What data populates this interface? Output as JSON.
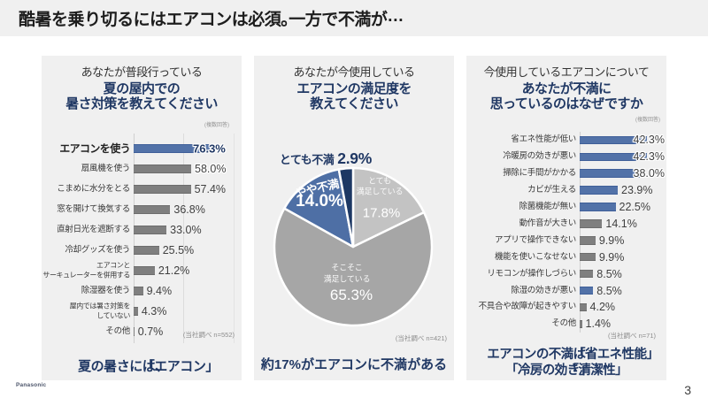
{
  "slide": {
    "title": "酷暑を乗り切るにはエアコンは必須。一方で不満が…",
    "page_number": "3",
    "brand": "Panasonic"
  },
  "colors": {
    "panel_bg": "#f0f0f0",
    "accent_blue": "#5272a8",
    "bar_gray": "#7f7f7f",
    "dark_navy": "#203864",
    "pie_light_gray": "#c3c3c3",
    "pie_gray": "#a6a6a6"
  },
  "panels": [
    {
      "header": "あなたが普段行っている",
      "title_lines": [
        "夏の屋内での",
        "暑さ対策を教えてください"
      ],
      "note": "(複数回答)",
      "source_note": "(当社調べ n=552)",
      "takeaway_lines": [
        "夏の暑さには、「エアコン」"
      ]
    },
    {
      "header": "あなたが今使用している",
      "title_lines": [
        "エアコンの満足度を",
        "教えてください"
      ],
      "note": "",
      "source_note": "(当社調べ n=421)",
      "takeaway_lines": [
        "約17%がエアコンに不満がある"
      ]
    },
    {
      "header": "今使用しているエアコンについて",
      "title_lines": [
        "あなたが不満に",
        "思っているのはなぜですか"
      ],
      "note": "(複数回答)",
      "source_note": "(当社調べ n=71)",
      "takeaway_lines": [
        "エアコンの不満は「省エネ性能」",
        "「冷房の効き」「清潔性」"
      ]
    }
  ],
  "chart_data": [
    {
      "type": "bar",
      "title": "夏の屋内での暑さ対策を教えてください",
      "categories": [
        "エアコンを使う",
        "扇風機を使う",
        "こまめに水分をとる",
        "窓を開けて換気する",
        "直射日光を遮断する",
        "冷却グッズを使う",
        [
          "エアコンと",
          "サーキュレーターを併用する"
        ],
        "除湿器を使う",
        [
          "屋内では暑さ対策を",
          "していない"
        ],
        "その他"
      ],
      "values": [
        76.3,
        58.0,
        57.4,
        36.8,
        33.0,
        25.5,
        21.2,
        9.4,
        4.3,
        0.7
      ],
      "unit": "%",
      "xlim": [
        0,
        100
      ],
      "gridlines_pct": [
        0,
        50,
        100
      ],
      "highlight_indices": [
        0
      ],
      "emphasis_index": 0
    },
    {
      "type": "pie",
      "title": "エアコンの満足度を教えてください",
      "direction": "clockwise",
      "start_angle_deg": 0,
      "slices": [
        {
          "label": "とても満足している",
          "label_lines": [
            "とても",
            "満足している"
          ],
          "value": 17.8,
          "pct_display": "17.8%",
          "color": "#c3c3c3"
        },
        {
          "label": "そこそこ満足している",
          "label_lines": [
            "そこそこ",
            "満足している"
          ],
          "value": 65.3,
          "pct_display": "65.3%",
          "color": "#a6a6a6"
        },
        {
          "label": "やや不満",
          "label_lines": [
            "やや不満"
          ],
          "value": 14.0,
          "pct_display": "14.0%",
          "color": "#4e6fa5"
        },
        {
          "label": "とても不満",
          "label_lines": [
            "とても不満"
          ],
          "value": 2.9,
          "pct_display": "2.9%",
          "color": "#1d3864"
        }
      ]
    },
    {
      "type": "bar",
      "title": "あなたが不満に思っているのはなぜですか",
      "categories": [
        "省エネ性能が低い",
        "冷暖房の効きが悪い",
        "掃除に手間がかかる",
        "カビが生える",
        "除菌機能が無い",
        "動作音が大きい",
        "アプリで操作できない",
        "機能を使いこなせない",
        "リモコンが操作しづらい",
        "除湿の効きが悪い",
        "不具合や故障が起きやすい",
        "その他"
      ],
      "values": [
        42.3,
        42.3,
        38.0,
        23.9,
        22.5,
        14.1,
        9.9,
        9.9,
        8.5,
        8.5,
        4.2,
        1.4
      ],
      "unit": "%",
      "xlim": [
        0,
        55
      ],
      "gridlines_pct": [
        0
      ],
      "highlight_indices": [
        0,
        1,
        2,
        3,
        4,
        9
      ],
      "emphasis_index": -1
    }
  ]
}
